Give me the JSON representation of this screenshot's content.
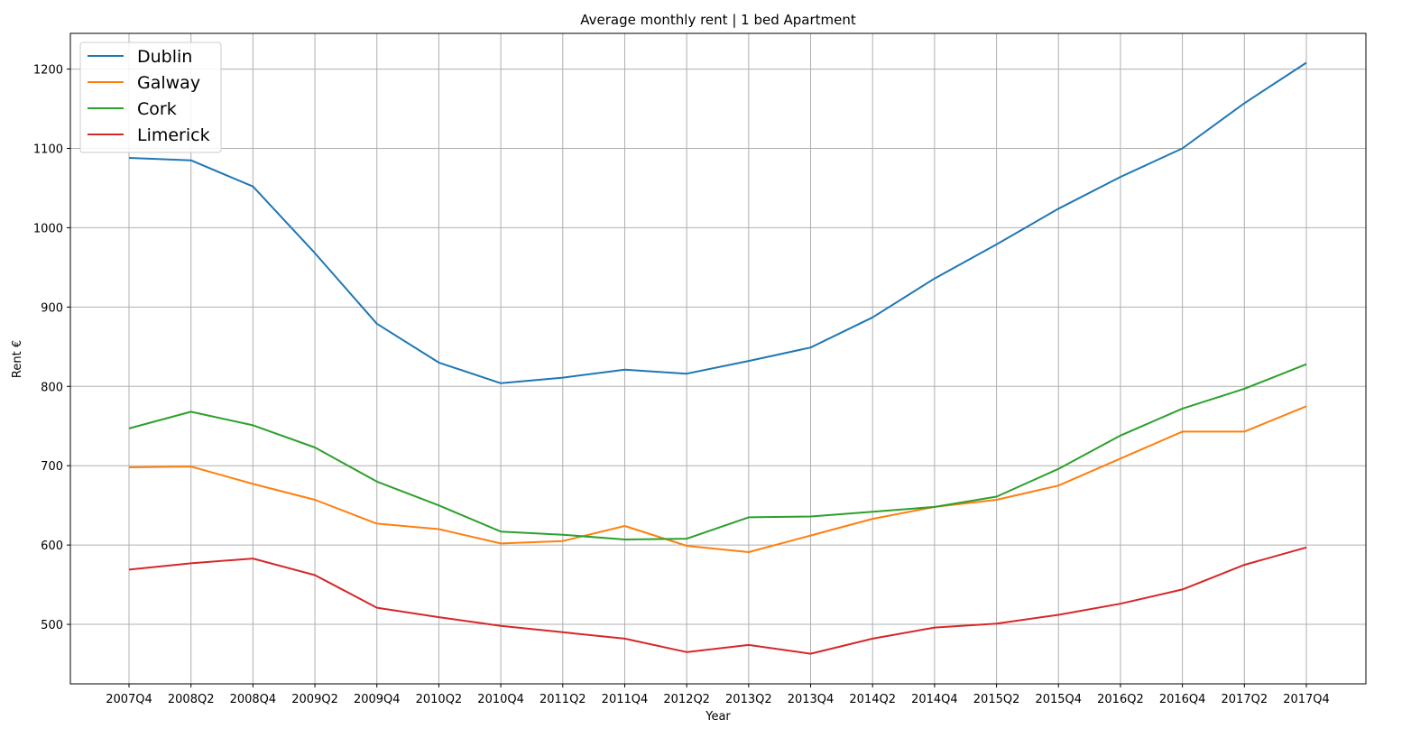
{
  "chart_data": {
    "type": "line",
    "title": "Average monthly rent | 1 bed Apartment",
    "xlabel": "Year",
    "ylabel": "Rent €",
    "ylim": [
      425,
      1245
    ],
    "yticks": [
      500,
      600,
      700,
      800,
      900,
      1000,
      1100,
      1200
    ],
    "grid": true,
    "legend_position": "top-left",
    "categories": [
      "2007Q4",
      "2008Q2",
      "2008Q4",
      "2009Q2",
      "2009Q4",
      "2010Q2",
      "2010Q4",
      "2011Q2",
      "2011Q4",
      "2012Q2",
      "2013Q2",
      "2013Q4",
      "2014Q2",
      "2014Q4",
      "2015Q2",
      "2015Q4",
      "2016Q2",
      "2016Q4",
      "2017Q2",
      "2017Q4"
    ],
    "series": [
      {
        "name": "Dublin",
        "color": "#1f77b4",
        "values": [
          1088,
          1085,
          1052,
          968,
          879,
          830,
          804,
          811,
          821,
          816,
          832,
          849,
          887,
          936,
          979,
          1024,
          1064,
          1100,
          1157,
          1208
        ]
      },
      {
        "name": "Galway",
        "color": "#ff7f0e",
        "values": [
          698,
          699,
          677,
          657,
          627,
          620,
          602,
          605,
          624,
          599,
          591,
          612,
          633,
          648,
          657,
          675,
          709,
          743,
          743,
          775
        ]
      },
      {
        "name": "Cork",
        "color": "#2ca02c",
        "values": [
          747,
          768,
          751,
          723,
          680,
          650,
          617,
          613,
          607,
          608,
          635,
          636,
          642,
          648,
          661,
          696,
          738,
          772,
          797,
          828
        ]
      },
      {
        "name": "Limerick",
        "color": "#d62728",
        "values": [
          569,
          577,
          583,
          562,
          521,
          509,
          498,
          490,
          482,
          465,
          474,
          463,
          482,
          496,
          501,
          512,
          526,
          544,
          575,
          597
        ]
      }
    ]
  }
}
